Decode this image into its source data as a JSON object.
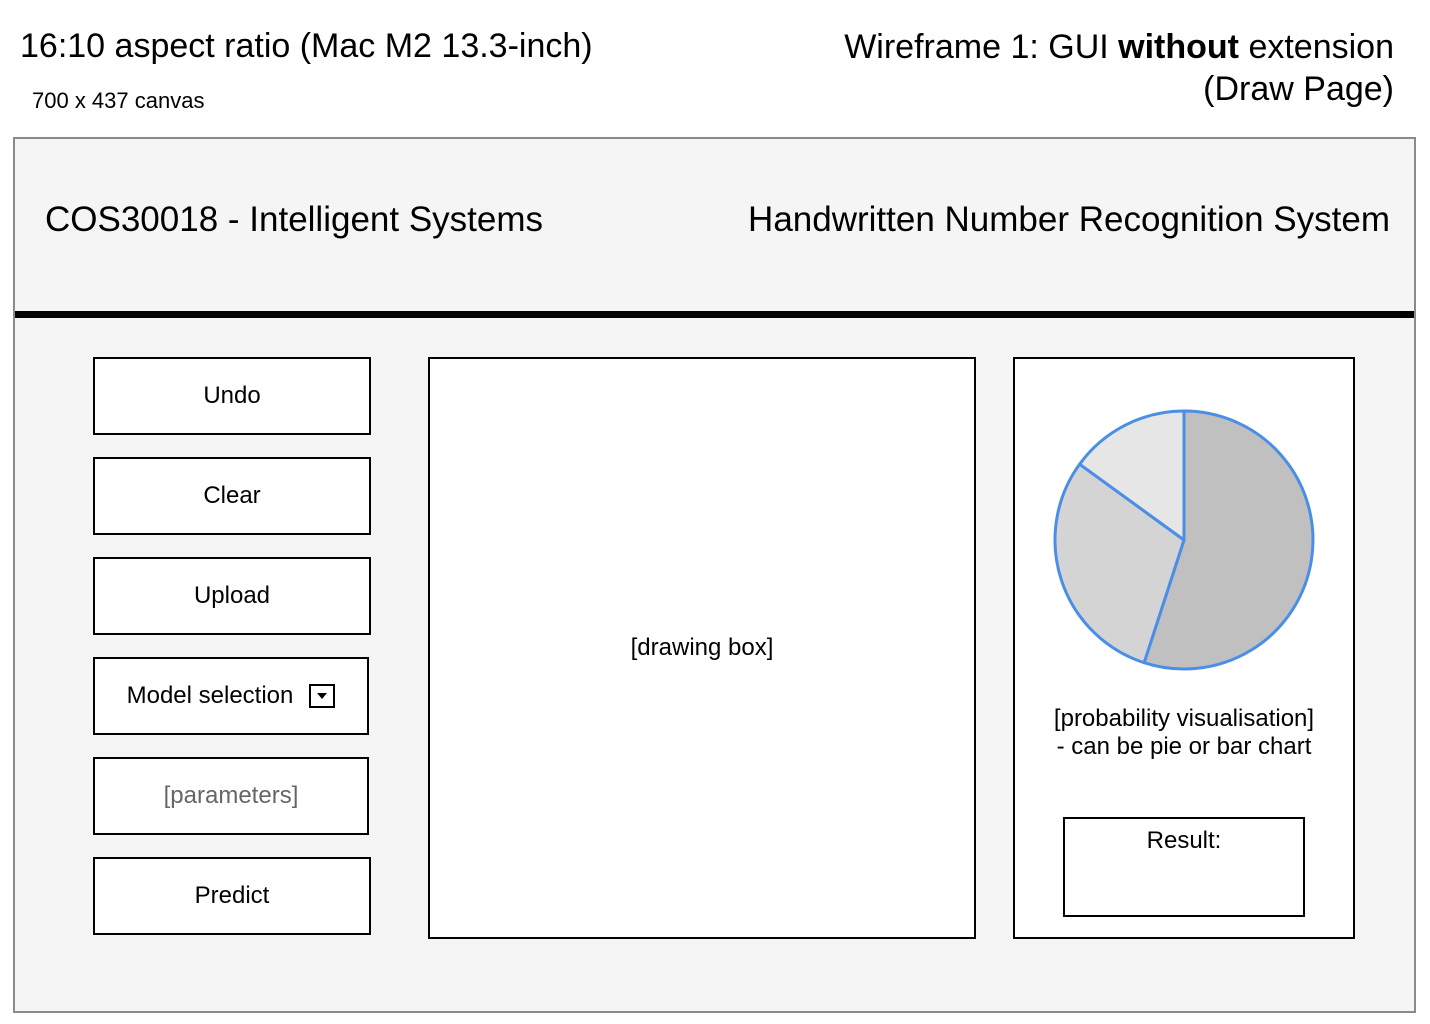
{
  "annotations": {
    "aspect_title": "16:10 aspect ratio (Mac M2 13.3-inch)",
    "canvas_size": "700 x 437 canvas",
    "wireframe_title_prefix": "Wireframe 1: GUI ",
    "wireframe_title_bold": "without",
    "wireframe_title_suffix": " extension",
    "wireframe_subtitle": "(Draw Page)"
  },
  "header": {
    "course": "COS30018 - Intelligent Systems",
    "system": "Handwritten Number Recognition System"
  },
  "controls": {
    "undo": "Undo",
    "clear": "Clear",
    "upload": "Upload",
    "model_selection": "Model selection",
    "parameters": "[parameters]",
    "predict": "Predict"
  },
  "drawing_box": "[drawing box]",
  "probability": {
    "line1": "[probability visualisation]",
    "line2": "- can be pie or bar chart"
  },
  "result_label": "Result:",
  "colors": {
    "pie_stroke": "#4a8ee8",
    "slice_1": "#c0c0c0",
    "slice_2": "#d4d4d4",
    "slice_3": "#e6e6e6"
  },
  "chart_data": {
    "type": "pie",
    "values": [
      55,
      30,
      15
    ]
  }
}
